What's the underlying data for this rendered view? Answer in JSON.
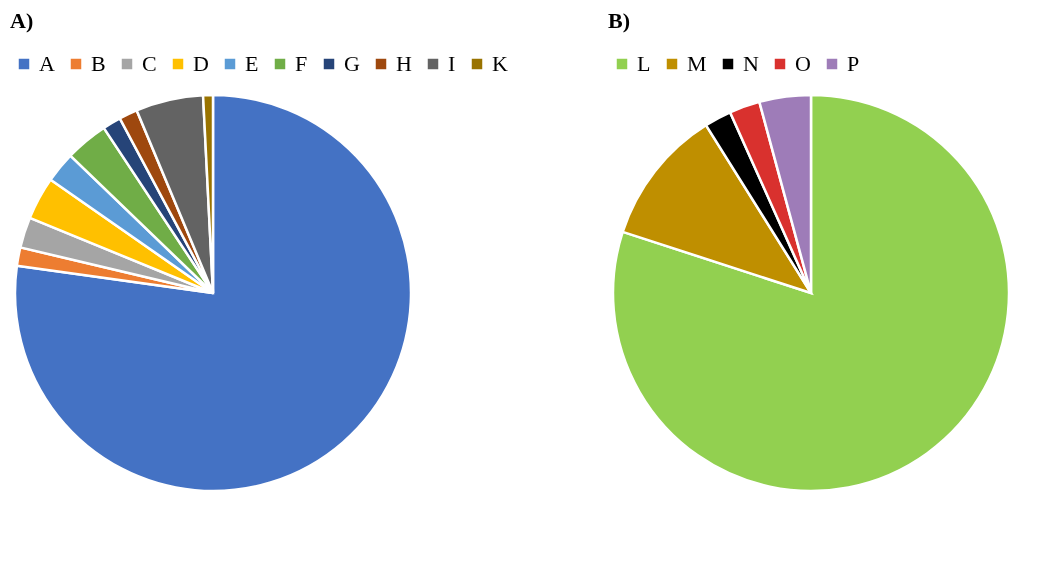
{
  "chart_data": [
    {
      "type": "pie",
      "title": "A)",
      "categories": [
        "A",
        "B",
        "C",
        "D",
        "E",
        "F",
        "G",
        "H",
        "I",
        "K"
      ],
      "values": [
        77.2,
        1.5,
        2.5,
        3.5,
        2.5,
        3.5,
        1.5,
        1.5,
        5.5,
        0.8
      ],
      "colors": [
        "#4472c4",
        "#ed7d31",
        "#a5a5a5",
        "#ffc000",
        "#5b9bd5",
        "#70ad47",
        "#264478",
        "#9e480e",
        "#636363",
        "#997300"
      ],
      "legend": "top"
    },
    {
      "type": "pie",
      "title": "B)",
      "categories": [
        "L",
        "M",
        "N",
        "O",
        "P"
      ],
      "values": [
        80.0,
        11.1,
        2.2,
        2.5,
        4.2
      ],
      "colors": [
        "#92d050",
        "#bf8f00",
        "#000000",
        "#d9312e",
        "#9e7cb8"
      ],
      "legend": "top"
    }
  ]
}
